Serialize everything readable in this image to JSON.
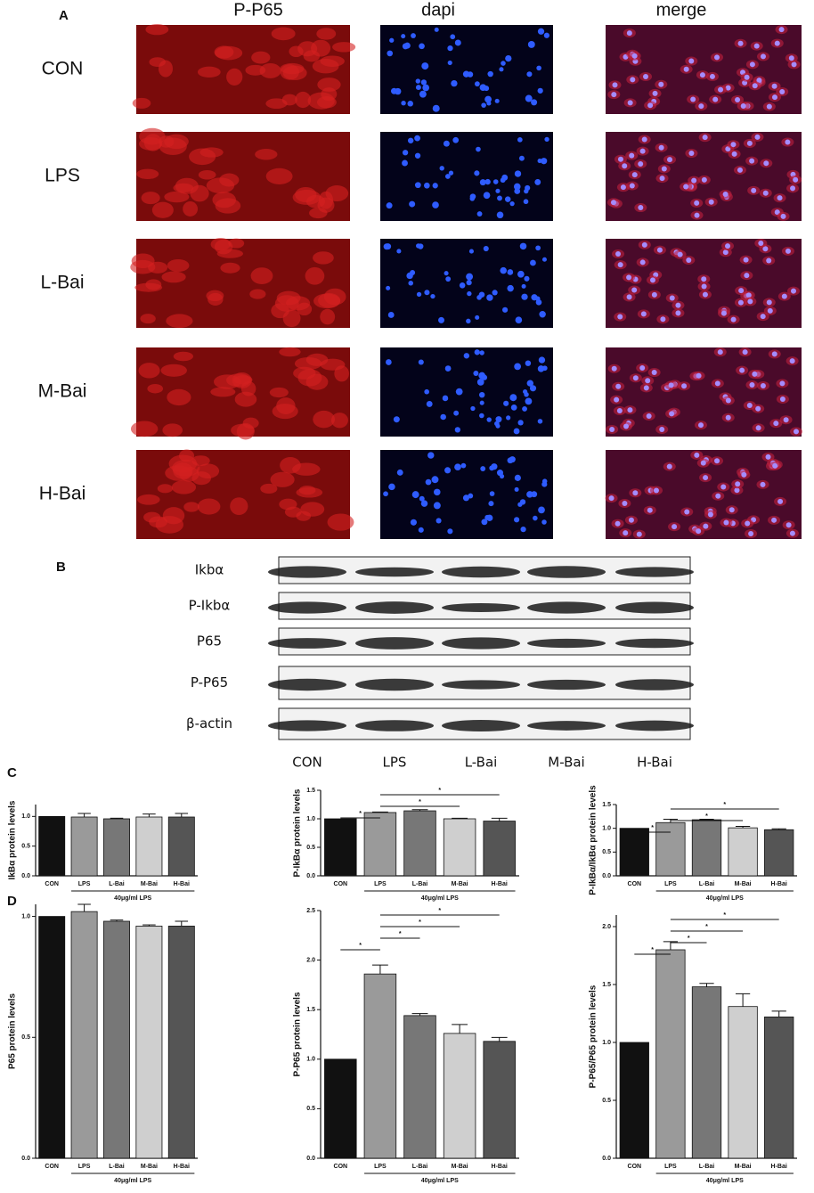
{
  "panel_a": {
    "label": "A",
    "columns": [
      "P-P65",
      "dapi",
      "merge"
    ],
    "rows": [
      "CON",
      "LPS",
      "L-Bai",
      "M-Bai",
      "H-Bai"
    ]
  },
  "panel_b": {
    "label": "B",
    "proteins": [
      "Ikbα",
      "P-Ikbα",
      "P65",
      "P-P65",
      "β-actin"
    ],
    "groups": [
      "CON",
      "LPS",
      "L-Bai",
      "M-Bai",
      "H-Bai"
    ]
  },
  "panel_c": {
    "label": "C"
  },
  "panel_d": {
    "label": "D"
  },
  "chart_data": [
    {
      "type": "bar",
      "ylabel": "IkBα protein levels",
      "categories": [
        "CON",
        "LPS",
        "L-Bai",
        "M-Bai",
        "H-Bai"
      ],
      "values": [
        1.0,
        0.99,
        0.96,
        0.99,
        0.99
      ],
      "errors": [
        0,
        0.06,
        0.01,
        0.05,
        0.06
      ],
      "colors": [
        "#111111",
        "#9a9a9a",
        "#777777",
        "#cfcfcf",
        "#555555"
      ],
      "ylim": [
        0,
        1.2
      ],
      "yticks": [
        {
          "value": 0,
          "label": "0.0"
        },
        {
          "value": 0.5,
          "label": "0.5"
        },
        {
          "value": 1,
          "label": "1.0"
        }
      ],
      "group_label": "40μg/ml LPS",
      "brackets": []
    },
    {
      "type": "bar",
      "ylabel": "P-IkBα protein levels",
      "categories": [
        "CON",
        "LPS",
        "L-Bai",
        "M-Bai",
        "H-Bai"
      ],
      "values": [
        1.0,
        1.11,
        1.14,
        1.0,
        0.96
      ],
      "errors": [
        0,
        0.01,
        0.02,
        0.01,
        0.05
      ],
      "colors": [
        "#111111",
        "#9a9a9a",
        "#777777",
        "#cfcfcf",
        "#555555"
      ],
      "ylim": [
        0,
        1.5
      ],
      "yticks": [
        {
          "value": 0,
          "label": "0.0"
        },
        {
          "value": 0.5,
          "label": "0.5"
        },
        {
          "value": 1,
          "label": "1.0"
        },
        1.5
      ],
      "group_label": "40μg/ml LPS",
      "brackets": [
        {
          "from": "CON",
          "to": "LPS",
          "label": "*"
        },
        {
          "from": "LPS",
          "to": "M-Bai",
          "label": "*"
        },
        {
          "from": "LPS",
          "to": "H-Bai",
          "label": "*"
        }
      ]
    },
    {
      "type": "bar",
      "ylabel": "P-IkBα/IkBα protein levels",
      "categories": [
        "CON",
        "LPS",
        "L-Bai",
        "M-Bai",
        "H-Bai"
      ],
      "values": [
        1.0,
        1.12,
        1.18,
        1.01,
        0.97
      ],
      "errors": [
        0,
        0.07,
        0.01,
        0.03,
        0.02
      ],
      "colors": [
        "#111111",
        "#9a9a9a",
        "#777777",
        "#cfcfcf",
        "#555555"
      ],
      "ylim": [
        0,
        1.5
      ],
      "yticks": [
        {
          "value": 0,
          "label": "0.0"
        },
        {
          "value": 0.5,
          "label": "0.5"
        },
        {
          "value": 1,
          "label": "1.0"
        },
        1.5
      ],
      "group_label": "40μg/ml LPS",
      "brackets": [
        {
          "from": "CON",
          "to": "LPS",
          "label": "*"
        },
        {
          "from": "LPS",
          "to": "M-Bai",
          "label": "*"
        },
        {
          "from": "LPS",
          "to": "H-Bai",
          "label": "*"
        }
      ]
    },
    {
      "type": "bar",
      "ylabel": "P65 protein levels",
      "categories": [
        "CON",
        "LPS",
        "L-Bai",
        "M-Bai",
        "H-Bai"
      ],
      "values": [
        1.0,
        1.02,
        0.98,
        0.96,
        0.96
      ],
      "errors": [
        0,
        0.03,
        0.005,
        0.005,
        0.02
      ],
      "colors": [
        "#111111",
        "#9a9a9a",
        "#777777",
        "#cfcfcf",
        "#555555"
      ],
      "ylim": [
        0,
        1.05
      ],
      "yticks": [
        {
          "value": 0,
          "label": "0.0"
        },
        {
          "value": 0.5,
          "label": "0.5"
        },
        {
          "value": 1,
          "label": "1.0"
        }
      ],
      "group_label": "40μg/ml LPS",
      "brackets": []
    },
    {
      "type": "bar",
      "ylabel": "P-P65 protein levels",
      "categories": [
        "CON",
        "LPS",
        "L-Bai",
        "M-Bai",
        "H-Bai"
      ],
      "values": [
        1.0,
        1.86,
        1.44,
        1.26,
        1.18
      ],
      "errors": [
        0,
        0.09,
        0.02,
        0.09,
        0.04
      ],
      "colors": [
        "#111111",
        "#9a9a9a",
        "#777777",
        "#cfcfcf",
        "#555555"
      ],
      "ylim": [
        0,
        2.5
      ],
      "yticks": [
        {
          "value": 0,
          "label": "0.0"
        },
        {
          "value": 0.5,
          "label": "0.5"
        },
        {
          "value": 1,
          "label": "1.0"
        },
        1.5,
        {
          "value": 2,
          "label": "2.0"
        },
        2.5
      ],
      "group_label": "40μg/ml LPS",
      "brackets": [
        {
          "from": "CON",
          "to": "LPS",
          "label": "*"
        },
        {
          "from": "LPS",
          "to": "L-Bai",
          "label": "*"
        },
        {
          "from": "LPS",
          "to": "M-Bai",
          "label": "*"
        },
        {
          "from": "LPS",
          "to": "H-Bai",
          "label": "*"
        }
      ]
    },
    {
      "type": "bar",
      "ylabel": "P-P65/P65 protein levels",
      "categories": [
        "CON",
        "LPS",
        "L-Bai",
        "M-Bai",
        "H-Bai"
      ],
      "values": [
        1.0,
        1.8,
        1.48,
        1.31,
        1.22
      ],
      "errors": [
        0,
        0.07,
        0.03,
        0.11,
        0.05
      ],
      "colors": [
        "#111111",
        "#9a9a9a",
        "#777777",
        "#cfcfcf",
        "#555555"
      ],
      "ylim": [
        0,
        2.1
      ],
      "yticks": [
        {
          "value": 0,
          "label": "0.0"
        },
        {
          "value": 0.5,
          "label": "0.5"
        },
        {
          "value": 1,
          "label": "1.0"
        },
        1.5,
        {
          "value": 2,
          "label": "2.0"
        }
      ],
      "group_label": "40μg/ml LPS",
      "brackets": [
        {
          "from": "CON",
          "to": "LPS",
          "label": "*"
        },
        {
          "from": "LPS",
          "to": "L-Bai",
          "label": "*"
        },
        {
          "from": "LPS",
          "to": "M-Bai",
          "label": "*"
        },
        {
          "from": "LPS",
          "to": "H-Bai",
          "label": "*"
        }
      ]
    }
  ]
}
